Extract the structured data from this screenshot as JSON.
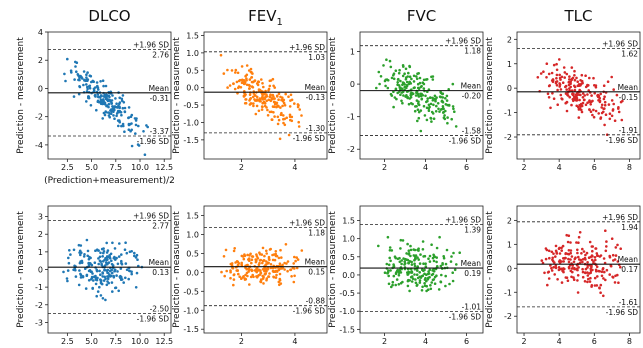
{
  "column_titles": [
    {
      "text": "DLCO",
      "sub": ""
    },
    {
      "text": "FEV",
      "sub": "1"
    },
    {
      "text": "FVC",
      "sub": ""
    },
    {
      "text": "TLC",
      "sub": ""
    }
  ],
  "chart_data": [
    {
      "type": "scatter",
      "title": "DLCO",
      "xlabel": "(Prediction+measurement)/2",
      "ylabel": "Prediction - measurement",
      "color": "#1f77b4",
      "xlim": [
        0.5,
        13.2
      ],
      "ylim": [
        -5.0,
        4.0
      ],
      "xticks": [
        2.5,
        5.0,
        7.5,
        10.0,
        12.5
      ],
      "xtick_labels": [
        "2.5",
        "5.0",
        "7.5",
        "10.0",
        "12.5"
      ],
      "yticks": [
        -4,
        -2,
        0,
        2,
        4
      ],
      "ytick_labels": [
        "-4",
        "-2",
        "0",
        "2",
        "4"
      ],
      "upper_label": "+1.96 SD",
      "upper": 2.76,
      "upper_text": "2.76",
      "mean_label": "Mean",
      "mean": -0.31,
      "mean_text": "-0.31",
      "lower_label": "-1.96 SD",
      "lower": -3.37,
      "lower_text": "-3.37",
      "n_points": 220,
      "x_range": [
        2.0,
        10.8
      ],
      "trend": -0.55,
      "trend_center": 5.5,
      "noise": 0.95
    },
    {
      "type": "scatter",
      "title": "FEV1",
      "xlabel": "",
      "ylabel": "Prediction - measurement",
      "color": "#ff7f0e",
      "xlim": [
        0.6,
        5.2
      ],
      "ylim": [
        -2.05,
        1.6
      ],
      "xticks": [
        2,
        4
      ],
      "xtick_labels": [
        "2",
        "4"
      ],
      "yticks": [
        -1.5,
        -1.0,
        -0.5,
        0.0,
        0.5,
        1.0,
        1.5
      ],
      "ytick_labels": [
        "-1.5",
        "-1.0",
        "-0.5",
        "0.0",
        "0.5",
        "1.0",
        "1.5"
      ],
      "upper_label": "+1.96 SD",
      "upper": 1.03,
      "upper_text": "1.03",
      "mean_label": "Mean",
      "mean": -0.13,
      "mean_text": "-0.13",
      "lower_label": "-1.96 SD",
      "lower": -1.3,
      "lower_text": "-1.30",
      "n_points": 220,
      "x_range": [
        1.2,
        4.3
      ],
      "trend": -0.45,
      "trend_center": 2.6,
      "noise": 0.45
    },
    {
      "type": "scatter",
      "title": "FVC",
      "xlabel": "",
      "ylabel": "Prediction - measurement",
      "color": "#2ca02c",
      "xlim": [
        0.8,
        6.8
      ],
      "ylim": [
        -2.3,
        1.6
      ],
      "xticks": [
        2,
        4,
        6
      ],
      "xtick_labels": [
        "2",
        "4",
        "6"
      ],
      "yticks": [
        -2,
        -1,
        0,
        1
      ],
      "ytick_labels": [
        "-2",
        "-1",
        "0",
        "1"
      ],
      "upper_label": "+1.96 SD",
      "upper": 1.18,
      "upper_text": "1.18",
      "mean_label": "Mean",
      "mean": -0.2,
      "mean_text": "-0.20",
      "lower_label": "-1.96 SD",
      "lower": -1.58,
      "lower_text": "-1.58",
      "n_points": 220,
      "x_range": [
        1.5,
        5.8
      ],
      "trend": -0.25,
      "trend_center": 3.3,
      "noise": 0.58
    },
    {
      "type": "scatter",
      "title": "TLC",
      "xlabel": "",
      "ylabel": "Prediction - measurement",
      "color": "#d62728",
      "xlim": [
        1.6,
        8.6
      ],
      "ylim": [
        -2.9,
        2.3
      ],
      "xticks": [
        2,
        4,
        6,
        8
      ],
      "xtick_labels": [
        "2",
        "4",
        "6",
        "8"
      ],
      "yticks": [
        -2,
        -1,
        0,
        1,
        2
      ],
      "ytick_labels": [
        "-2",
        "-1",
        "0",
        "1",
        "2"
      ],
      "upper_label": "+1.96 SD",
      "upper": 1.62,
      "upper_text": "1.62",
      "mean_label": "Mean",
      "mean": -0.15,
      "mean_text": "-0.15",
      "lower_label": "-1.96 SD",
      "lower": -1.91,
      "lower_text": "-1.91",
      "n_points": 220,
      "x_range": [
        2.6,
        7.8
      ],
      "trend": -0.32,
      "trend_center": 5.0,
      "noise": 0.78
    },
    {
      "type": "scatter",
      "title": "",
      "xlabel": "(Prediction+measurement)/2",
      "ylabel": "Prediction - measurement",
      "color": "#1f77b4",
      "xlim": [
        0.5,
        13.2
      ],
      "ylim": [
        -3.6,
        3.6
      ],
      "xticks": [
        2.5,
        5.0,
        7.5,
        10.0,
        12.5
      ],
      "xtick_labels": [
        "2.5",
        "5.0",
        "7.5",
        "10.0",
        "12.5"
      ],
      "yticks": [
        -3,
        -2,
        -1,
        0,
        1,
        2,
        3
      ],
      "ytick_labels": [
        "-3",
        "-2",
        "-1",
        "0",
        "1",
        "2",
        "3"
      ],
      "upper_label": "+1.96 SD",
      "upper": 2.77,
      "upper_text": "2.77",
      "mean_label": "Mean",
      "mean": 0.13,
      "mean_text": "0.13",
      "lower_label": "-1.96 SD",
      "lower": -2.5,
      "lower_text": "-2.50",
      "n_points": 220,
      "x_range": [
        2.0,
        10.5
      ],
      "trend": 0.0,
      "trend_center": 5.5,
      "noise": 1.1
    },
    {
      "type": "scatter",
      "title": "",
      "xlabel": "(Prediction+measurement)/2",
      "ylabel": "Prediction - measurement",
      "color": "#ff7f0e",
      "xlim": [
        0.6,
        5.2
      ],
      "ylim": [
        -1.6,
        1.75
      ],
      "xticks": [
        2,
        4
      ],
      "xtick_labels": [
        "2",
        "4"
      ],
      "yticks": [
        -1.5,
        -1.0,
        -0.5,
        0.0,
        0.5,
        1.0,
        1.5
      ],
      "ytick_labels": [
        "-1.5",
        "-1.0",
        "-0.5",
        "0.0",
        "0.5",
        "1.0",
        "1.5"
      ],
      "upper_label": "+1.96 SD",
      "upper": 1.18,
      "upper_text": "1.18",
      "mean_label": "Mean",
      "mean": 0.15,
      "mean_text": "0.15",
      "lower_label": "-1.96 SD",
      "lower": -0.88,
      "lower_text": "-0.88",
      "n_points": 220,
      "x_range": [
        1.2,
        4.3
      ],
      "trend": 0.0,
      "trend_center": 2.6,
      "noise": 0.42
    },
    {
      "type": "scatter",
      "title": "",
      "xlabel": "(Prediction+measurement)/2",
      "ylabel": "Prediction - measurement",
      "color": "#2ca02c",
      "xlim": [
        0.8,
        6.8
      ],
      "ylim": [
        -1.6,
        1.9
      ],
      "xticks": [
        2,
        4,
        6
      ],
      "xtick_labels": [
        "2",
        "4",
        "6"
      ],
      "yticks": [
        -1.5,
        -1.0,
        -0.5,
        0.0,
        0.5,
        1.0,
        1.5
      ],
      "ytick_labels": [
        "-1.5",
        "-1.0",
        "-0.5",
        "0.0",
        "0.5",
        "1.0",
        "1.5"
      ],
      "upper_label": "+1.96 SD",
      "upper": 1.39,
      "upper_text": "1.39",
      "mean_label": "Mean",
      "mean": 0.19,
      "mean_text": "0.19",
      "lower_label": "-1.96 SD",
      "lower": -1.01,
      "lower_text": "-1.01",
      "n_points": 220,
      "x_range": [
        1.5,
        5.8
      ],
      "trend": 0.0,
      "trend_center": 3.3,
      "noise": 0.55
    },
    {
      "type": "scatter",
      "title": "",
      "xlabel": "(Prediction+measurement)/2",
      "ylabel": "Prediction - measurement",
      "color": "#d62728",
      "xlim": [
        1.6,
        8.6
      ],
      "ylim": [
        -2.7,
        2.6
      ],
      "xticks": [
        2,
        4,
        6,
        8
      ],
      "xtick_labels": [
        "2",
        "4",
        "6",
        "8"
      ],
      "yticks": [
        -2,
        -1,
        0,
        1,
        2
      ],
      "ytick_labels": [
        "-2",
        "-1",
        "0",
        "1",
        "2"
      ],
      "upper_label": "+1.96 SD",
      "upper": 1.94,
      "upper_text": "1.94",
      "mean_label": "Mean",
      "mean": 0.17,
      "mean_text": "0.17",
      "lower_label": "-1.96 SD",
      "lower": -1.61,
      "lower_text": "-1.61",
      "n_points": 220,
      "x_range": [
        2.6,
        7.8
      ],
      "trend": 0.0,
      "trend_center": 5.0,
      "noise": 0.9
    }
  ]
}
